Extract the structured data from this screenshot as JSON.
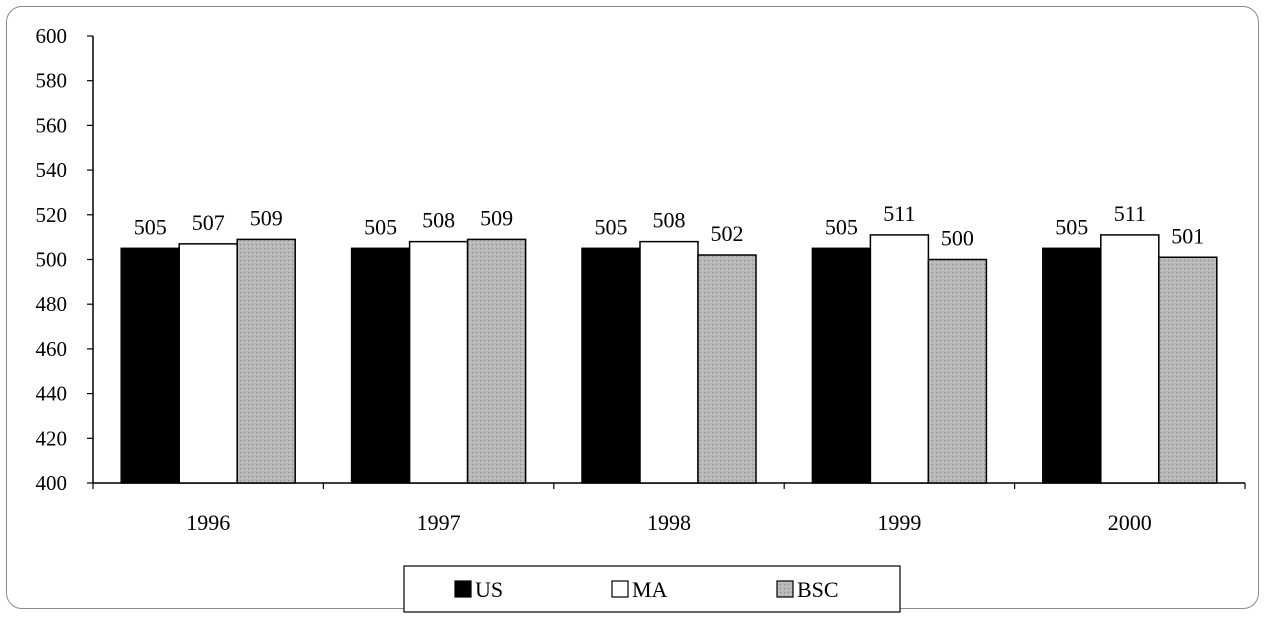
{
  "chart_data": {
    "type": "bar",
    "title": "",
    "xlabel": "",
    "ylabel": "",
    "categories": [
      "1996",
      "1997",
      "1998",
      "1999",
      "2000"
    ],
    "series": [
      {
        "name": "US",
        "values": [
          505,
          505,
          505,
          505,
          505
        ],
        "labels": [
          "505",
          "505",
          "505",
          "505",
          "505"
        ],
        "color": "#000000"
      },
      {
        "name": "MA",
        "values": [
          507,
          508,
          508,
          511,
          511
        ],
        "labels": [
          "507",
          "508",
          "508",
          "511",
          "511"
        ],
        "color": "#ffffff"
      },
      {
        "name": "BSC",
        "values": [
          509,
          509,
          502,
          500,
          501
        ],
        "labels": [
          "509",
          "509",
          "502",
          "500",
          "501"
        ],
        "color": "#b4b4b4"
      }
    ],
    "ylim": [
      400,
      600
    ],
    "yticks": [
      "400",
      "420",
      "440",
      "460",
      "480",
      "500",
      "520",
      "540",
      "560",
      "580",
      "600"
    ],
    "grid": false,
    "legend": {
      "position": "bottom-center",
      "entries": [
        "US",
        "MA",
        "BSC"
      ]
    }
  }
}
